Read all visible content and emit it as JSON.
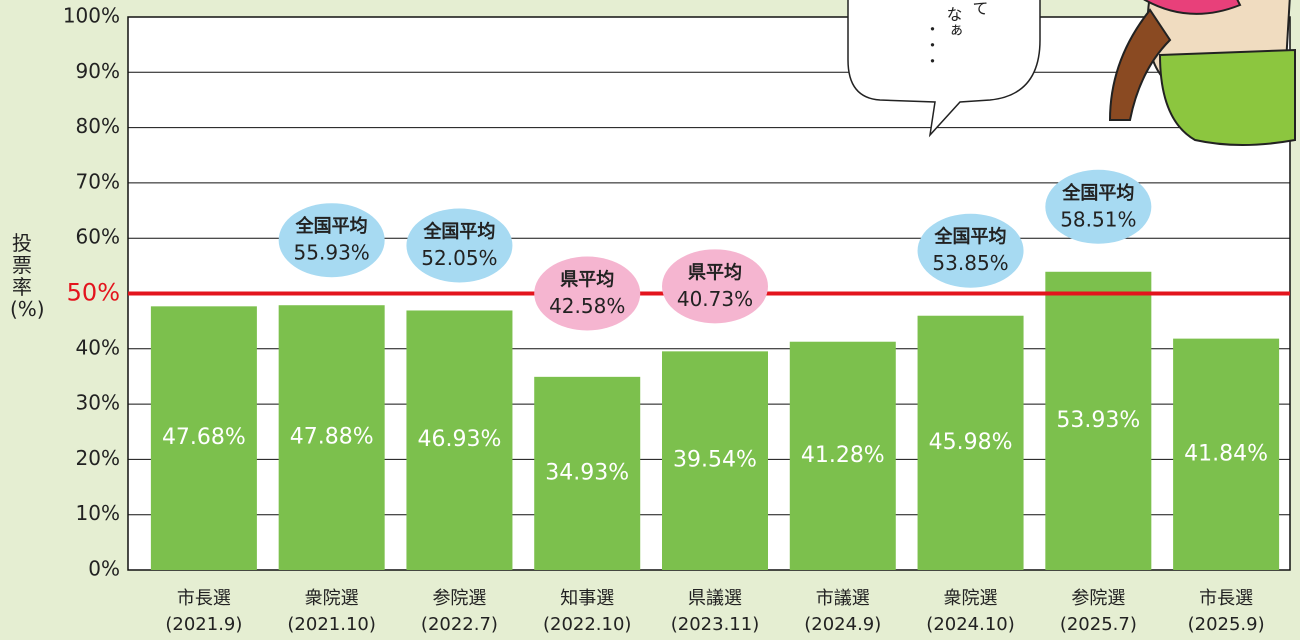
{
  "chart_data": {
    "type": "bar",
    "y_label": "投票率(%)",
    "categories": [
      "市長選\n(2021.9)",
      "衆院選\n(2021.10)",
      "参院選\n(2022.7)",
      "知事選\n(2022.10)",
      "県議選\n(2023.11)",
      "市議選\n(2024.9)",
      "衆院選\n(2024.10)",
      "参院選\n(2025.7)",
      "市長選\n(2025.9)"
    ],
    "values": [
      47.68,
      47.88,
      46.93,
      34.93,
      39.54,
      41.28,
      45.98,
      53.93,
      41.84
    ],
    "value_labels": [
      "47.68%",
      "47.88%",
      "46.93%",
      "34.93%",
      "39.54%",
      "41.28%",
      "45.98%",
      "53.93%",
      "41.84%"
    ],
    "color": "#7cc04d",
    "averages": {
      "labels": [
        null,
        "全国平均",
        "全国平均",
        "県平均",
        "県平均",
        null,
        "全国平均",
        "全国平均",
        null
      ],
      "values": [
        null,
        55.93,
        52.05,
        42.58,
        40.73,
        null,
        53.85,
        58.51,
        null
      ],
      "value_labels": [
        null,
        "55.93%",
        "52.05%",
        "42.58%",
        "40.73%",
        null,
        "53.85%",
        "58.51%",
        null
      ],
      "colors": [
        null,
        "#a7daf2",
        "#a7daf2",
        "#f5b5d0",
        "#f5b5d0",
        null,
        "#a7daf2",
        "#a7daf2",
        null
      ]
    },
    "reference_line": {
      "value": 50,
      "color": "#e3141d"
    },
    "speech": [
      "て",
      "なぁ",
      "・・・"
    ],
    "ylim": [
      0,
      100
    ],
    "yticks": [
      {
        "value": 0,
        "label": "0%"
      },
      {
        "value": 10,
        "label": "10%"
      },
      {
        "value": 20,
        "label": "20%"
      },
      {
        "value": 30,
        "label": "30%"
      },
      {
        "value": 40,
        "label": "40%"
      },
      {
        "value": 50,
        "label": "50%"
      },
      {
        "value": 60,
        "label": "60%"
      },
      {
        "value": 70,
        "label": "70%"
      },
      {
        "value": 80,
        "label": "80%"
      },
      {
        "value": 90,
        "label": "90%"
      },
      {
        "value": 100,
        "label": "100%"
      }
    ],
    "grid": true
  }
}
